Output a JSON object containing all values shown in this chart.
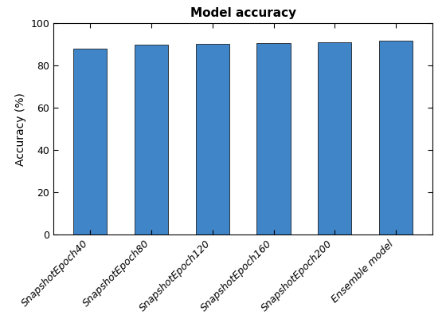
{
  "categories": [
    "SnapshotEpoch40",
    "SnapshotEpoch80",
    "SnapshotEpoch120",
    "SnapshotEpoch160",
    "SnapshotEpoch200",
    "Ensemble model"
  ],
  "values": [
    88.2,
    89.8,
    90.3,
    90.7,
    91.1,
    91.8
  ],
  "bar_color": "#3f85c8",
  "title": "Model accuracy",
  "ylabel": "Accuracy (%)",
  "ylim": [
    0,
    100
  ],
  "yticks": [
    0,
    20,
    40,
    60,
    80,
    100
  ],
  "background_color": "#ffffff",
  "title_fontsize": 11,
  "label_fontsize": 10,
  "tick_fontsize": 9,
  "bar_edge_color": "#000000",
  "bar_edge_width": 0.5,
  "bar_width": 0.55
}
